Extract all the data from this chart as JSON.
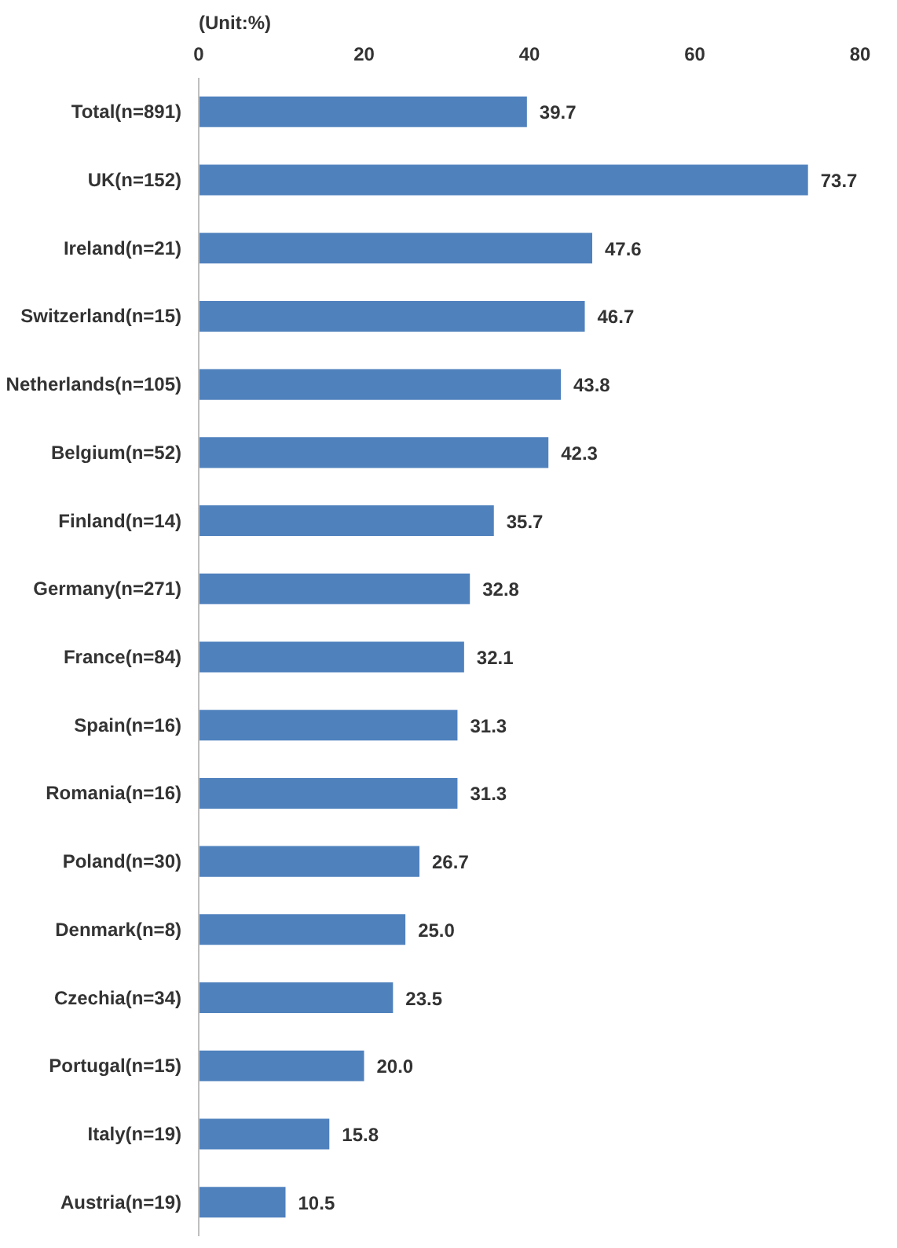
{
  "chart_data": {
    "type": "bar",
    "orientation": "horizontal",
    "annotations": [
      "(Unit:%)"
    ],
    "categories": [
      "Total(n=891)",
      "UK(n=152)",
      "Ireland(n=21)",
      "Switzerland(n=15)",
      "Netherlands(n=105)",
      "Belgium(n=52)",
      "Finland(n=14)",
      "Germany(n=271)",
      "France(n=84)",
      "Spain(n=16)",
      "Romania(n=16)",
      "Poland(n=30)",
      "Denmark(n=8)",
      "Czechia(n=34)",
      "Portugal(n=15)",
      "Italy(n=19)",
      "Austria(n=19)"
    ],
    "values": [
      39.7,
      73.7,
      47.6,
      46.7,
      43.8,
      42.3,
      35.7,
      32.8,
      32.1,
      31.3,
      31.3,
      26.7,
      25.0,
      23.5,
      20.0,
      15.8,
      10.5
    ],
    "value_labels": [
      "39.7",
      "73.7",
      "47.6",
      "46.7",
      "43.8",
      "42.3",
      "35.7",
      "32.8",
      "32.1",
      "31.3",
      "31.3",
      "26.7",
      "25.0",
      "23.5",
      "20.0",
      "15.8",
      "10.5"
    ],
    "color": "#4f81bd",
    "xlim": [
      0,
      80
    ],
    "xticks": [
      0,
      20,
      40,
      60,
      80
    ]
  }
}
